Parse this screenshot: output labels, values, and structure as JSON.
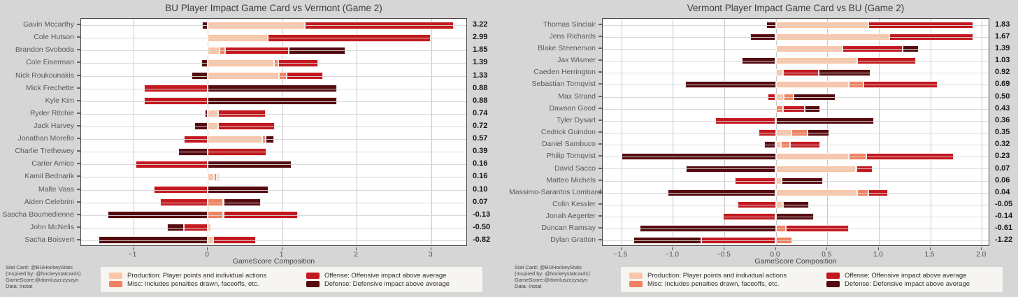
{
  "page": {
    "background": "#d6d6d6"
  },
  "colors": {
    "production": "#f9c6a9",
    "misc": "#f08261",
    "offense": "#c3181e",
    "defense": "#550a10"
  },
  "legend": {
    "entries": [
      {
        "key": "production",
        "label": "Production: Player points and individual actions"
      },
      {
        "key": "offense",
        "label": "Offense: Offensive impact above average"
      },
      {
        "key": "misc",
        "label": "Misc: Includes penalties drawn, faceoffs, etc."
      },
      {
        "key": "defense",
        "label": "Defense: Defensive impact above average"
      }
    ]
  },
  "footnote": {
    "lines": [
      "Stat Card: @BUHockeyStats",
      "(Inspired by: @hockeystatcards)",
      "GameScore:@domluszczyszyn",
      "Data: Instat"
    ]
  },
  "chart_data": [
    {
      "type": "bar",
      "orientation": "horizontal",
      "stacked": true,
      "title": "BU Player Impact Game Card vs Vermont (Game 2)",
      "xlabel": "GameScore Composition",
      "xlim": [
        -1.7,
        3.49
      ],
      "grid": true,
      "series_keys": [
        "production",
        "misc",
        "offense",
        "defense"
      ],
      "xticks": [
        {
          "value": -1,
          "label": "−1"
        },
        {
          "value": 0,
          "label": "0"
        },
        {
          "value": 1,
          "label": "1"
        },
        {
          "value": 2,
          "label": "2"
        },
        {
          "value": 3,
          "label": "3"
        }
      ],
      "players": [
        {
          "name": "Gavin Mccarthy",
          "total_label": "3.22",
          "production": 1.3,
          "misc": 0.0,
          "offense": 2.0,
          "defense": -0.08
        },
        {
          "name": "Cole Hutson",
          "total_label": "2.99",
          "production": 0.81,
          "misc": 0.0,
          "offense": 2.18,
          "defense": 0.0
        },
        {
          "name": "Brandon Svoboda",
          "total_label": "1.85",
          "production": 0.16,
          "misc": 0.07,
          "offense": 0.86,
          "defense": 0.76
        },
        {
          "name": "Cole Eiserman",
          "total_label": "1.39",
          "production": 0.89,
          "misc": 0.06,
          "offense": 0.53,
          "defense": -0.09
        },
        {
          "name": "Nick Roukounakis",
          "total_label": "1.33",
          "production": 0.96,
          "misc": 0.1,
          "offense": 0.49,
          "defense": -0.22
        },
        {
          "name": "Mick Frechette",
          "total_label": "0.88",
          "production": 0.0,
          "misc": 0.0,
          "offense": -0.86,
          "defense": 1.74
        },
        {
          "name": "Kyle Kim",
          "total_label": "0.88",
          "production": 0.0,
          "misc": 0.0,
          "offense": -0.86,
          "defense": 1.74
        },
        {
          "name": "Ryder Ritchie",
          "total_label": "0.74",
          "production": 0.14,
          "misc": 0.0,
          "offense": 0.64,
          "defense": -0.04
        },
        {
          "name": "Jack Harvey",
          "total_label": "0.72",
          "production": 0.14,
          "misc": 0.0,
          "offense": 0.76,
          "defense": -0.18
        },
        {
          "name": "Jonathan Morello",
          "total_label": "0.57",
          "production": 0.73,
          "misc": 0.05,
          "offense": -0.32,
          "defense": 0.11
        },
        {
          "name": "Charlie Trethewey",
          "total_label": "0.39",
          "production": 0.0,
          "misc": 0.0,
          "offense": 0.79,
          "defense": -0.4
        },
        {
          "name": "Carter Amico",
          "total_label": "0.16",
          "production": 0.0,
          "misc": 0.0,
          "offense": -0.97,
          "defense": 1.13
        },
        {
          "name": "Kamil Bednarik",
          "total_label": "0.16",
          "production": 0.08,
          "misc": 0.04,
          "offense": 0.02,
          "defense": 0.02
        },
        {
          "name": "Malte Vass",
          "total_label": "0.10",
          "production": 0.0,
          "misc": 0.0,
          "offense": -0.72,
          "defense": 0.82
        },
        {
          "name": "Aiden Celebrini",
          "total_label": "0.07",
          "production": 0.0,
          "misc": 0.21,
          "offense": -0.64,
          "defense": 0.5
        },
        {
          "name": "Sascha Boumedienne",
          "total_label": "-0.13",
          "production": 0.0,
          "misc": 0.21,
          "offense": 1.0,
          "defense": -1.34
        },
        {
          "name": "John McNelis",
          "total_label": "-0.50",
          "production": 0.05,
          "misc": 0.0,
          "offense": -0.32,
          "defense": -0.23
        },
        {
          "name": "Sacha Boisvert",
          "total_label": "-0.82",
          "production": 0.07,
          "misc": 0.0,
          "offense": 0.58,
          "defense": -1.47
        }
      ]
    },
    {
      "type": "bar",
      "orientation": "horizontal",
      "stacked": true,
      "title": "Vermont Player Impact Game Card vs BU (Game 2)",
      "xlabel": "GameScore Composition",
      "xlim": [
        -1.68,
        2.08
      ],
      "grid": true,
      "series_keys": [
        "production",
        "misc",
        "offense",
        "defense"
      ],
      "xticks": [
        {
          "value": -1.5,
          "label": "−1.5"
        },
        {
          "value": -1.0,
          "label": "−1.0"
        },
        {
          "value": -0.5,
          "label": "−0.5"
        },
        {
          "value": 0.0,
          "label": "0.0"
        },
        {
          "value": 0.5,
          "label": "0.5"
        },
        {
          "value": 1.0,
          "label": "1.0"
        },
        {
          "value": 1.5,
          "label": "1.5"
        },
        {
          "value": 2.0,
          "label": "2.0"
        }
      ],
      "players": [
        {
          "name": "Thomas Sinclair",
          "total_label": "1.83",
          "production": 0.9,
          "misc": 0.0,
          "offense": 1.02,
          "defense": -0.09
        },
        {
          "name": "Jens Richards",
          "total_label": "1.67",
          "production": 1.1,
          "misc": 0.0,
          "offense": 0.82,
          "defense": -0.25
        },
        {
          "name": "Blake Steenerson",
          "total_label": "1.39",
          "production": 0.65,
          "misc": 0.0,
          "offense": 0.58,
          "defense": 0.16
        },
        {
          "name": "Jax Wismer",
          "total_label": "1.03",
          "production": 0.79,
          "misc": 0.0,
          "offense": 0.57,
          "defense": -0.33
        },
        {
          "name": "Caeden Herrington",
          "total_label": "0.92",
          "production": 0.07,
          "misc": 0.0,
          "offense": 0.35,
          "defense": 0.5
        },
        {
          "name": "Sebastian Tornqvist",
          "total_label": "0.69",
          "production": 0.71,
          "misc": 0.14,
          "offense": 0.72,
          "defense": -0.88
        },
        {
          "name": "Max Strand",
          "total_label": "0.50",
          "production": 0.08,
          "misc": 0.09,
          "offense": -0.08,
          "defense": 0.41
        },
        {
          "name": "Dawson Good",
          "total_label": "0.43",
          "production": 0.0,
          "misc": 0.07,
          "offense": 0.21,
          "defense": 0.15
        },
        {
          "name": "Tyler Dysart",
          "total_label": "0.36",
          "production": 0.0,
          "misc": 0.0,
          "offense": -0.59,
          "defense": 0.95
        },
        {
          "name": "Cedrick Guindon",
          "total_label": "0.35",
          "production": 0.15,
          "misc": 0.16,
          "offense": -0.17,
          "defense": 0.21
        },
        {
          "name": "Daniel Sambuco",
          "total_label": "0.32",
          "production": 0.05,
          "misc": 0.09,
          "offense": 0.29,
          "defense": -0.11
        },
        {
          "name": "Philip Tornqvist",
          "total_label": "0.23",
          "production": 0.71,
          "misc": 0.17,
          "offense": 0.85,
          "defense": -1.5
        },
        {
          "name": "David Sacco",
          "total_label": "0.07",
          "production": 0.78,
          "misc": 0.0,
          "offense": 0.16,
          "defense": -0.87
        },
        {
          "name": "Matteo Michels",
          "total_label": "0.06",
          "production": 0.06,
          "misc": 0.0,
          "offense": -0.4,
          "defense": 0.4
        },
        {
          "name": "Massimo-Sarantos Lombardi",
          "total_label": "0.04",
          "production": 0.79,
          "misc": 0.11,
          "offense": 0.19,
          "defense": -1.05
        },
        {
          "name": "Colin Kessler",
          "total_label": "-0.05",
          "production": 0.07,
          "misc": 0.0,
          "offense": -0.37,
          "defense": 0.25
        },
        {
          "name": "Jonah Aegerter",
          "total_label": "-0.14",
          "production": 0.0,
          "misc": 0.0,
          "offense": -0.51,
          "defense": 0.37
        },
        {
          "name": "Duncan Ramsay",
          "total_label": "-0.61",
          "production": 0.0,
          "misc": 0.1,
          "offense": 0.61,
          "defense": -1.32
        },
        {
          "name": "Dylan Gratton",
          "total_label": "-1.22",
          "production": 0.0,
          "misc": 0.16,
          "offense": -0.72,
          "defense": -0.66
        }
      ]
    }
  ]
}
